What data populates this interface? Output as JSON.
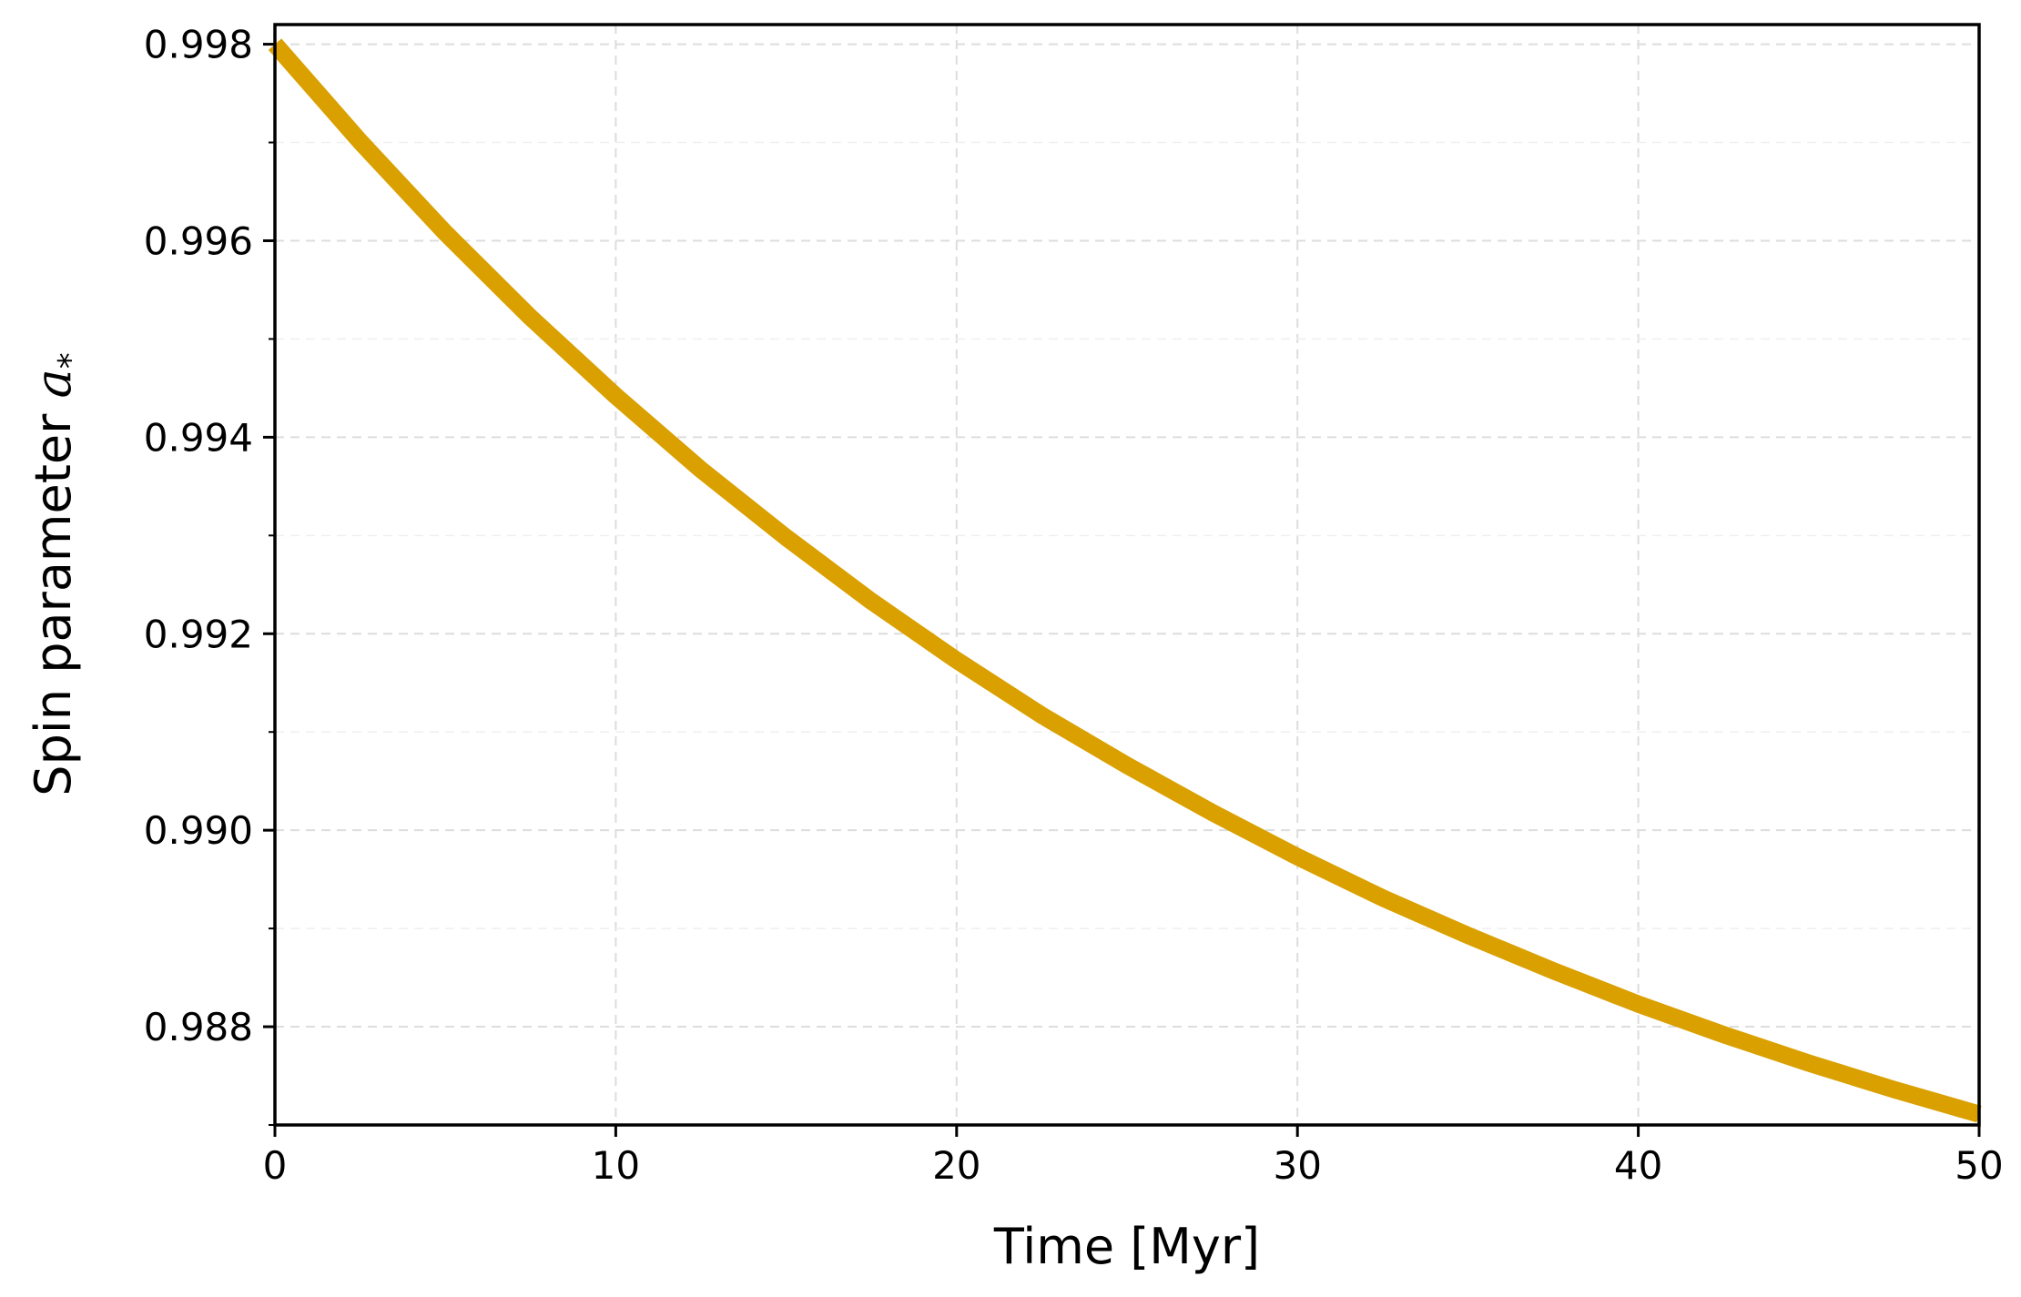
{
  "chart_data": {
    "type": "line",
    "title": "",
    "xlabel": "Time [Myr]",
    "ylabel": {
      "text": "Spin parameter ",
      "symbol": "a",
      "subscript": "*"
    },
    "xlim": [
      0,
      50
    ],
    "ylim": [
      0.987,
      0.9982
    ],
    "x_ticks": [
      0,
      10,
      20,
      30,
      40,
      50
    ],
    "x_tick_labels": [
      "0",
      "10",
      "20",
      "30",
      "40",
      "50"
    ],
    "y_ticks": [
      0.988,
      0.99,
      0.992,
      0.994,
      0.996,
      0.998
    ],
    "y_tick_labels": [
      "0.988",
      "0.990",
      "0.992",
      "0.994",
      "0.996",
      "0.998"
    ],
    "y_minor_ticks": [
      0.987,
      0.989,
      0.991,
      0.993,
      0.995,
      0.997
    ],
    "grid": true,
    "legend": "none",
    "series": [
      {
        "color": "#DAA000",
        "x": [
          0,
          2.5,
          5,
          7.5,
          10,
          12.5,
          15,
          17.5,
          20,
          22.5,
          25,
          27.5,
          30,
          32.5,
          35,
          37.5,
          40,
          42.5,
          45,
          47.5,
          50
        ],
        "y": [
          0.998,
          0.99701,
          0.99608,
          0.99522,
          0.99442,
          0.99367,
          0.99298,
          0.99233,
          0.99173,
          0.99117,
          0.99066,
          0.99018,
          0.98973,
          0.98931,
          0.98893,
          0.98857,
          0.98823,
          0.98792,
          0.98763,
          0.98736,
          0.98711
        ]
      }
    ]
  }
}
